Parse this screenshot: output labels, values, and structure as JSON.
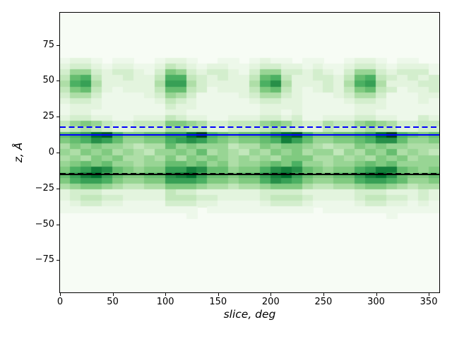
{
  "figure": {
    "background": "#ffffff",
    "plot_background": "#f7fcf5",
    "frame_color": "#000000"
  },
  "chart_data": {
    "type": "heatmap",
    "title": "",
    "xlabel": "slice, deg",
    "ylabel": "z, Å",
    "x_range": [
      0,
      360
    ],
    "z_range": [
      -97.5,
      97.5
    ],
    "x_tick_values": [
      0,
      50,
      100,
      150,
      200,
      250,
      300,
      350
    ],
    "x_tick_labels": [
      "0",
      "50",
      "100",
      "150",
      "200",
      "250",
      "300",
      "350"
    ],
    "y_tick_values": [
      75,
      50,
      25,
      0,
      -25,
      -50,
      -75
    ],
    "y_tick_labels": [
      "75",
      "50",
      "25",
      "0",
      "−25",
      "−50",
      "−75"
    ],
    "grid": false,
    "legend": "none",
    "colormap": "Greens",
    "colormap_stops": [
      [
        0.0,
        "#f7fcf5"
      ],
      [
        0.125,
        "#e5f5e0"
      ],
      [
        0.25,
        "#c7e9c0"
      ],
      [
        0.375,
        "#a1d99b"
      ],
      [
        0.5,
        "#74c476"
      ],
      [
        0.625,
        "#41ab5d"
      ],
      [
        0.75,
        "#238b45"
      ],
      [
        0.875,
        "#006d2c"
      ],
      [
        1.0,
        "#00441b"
      ]
    ],
    "n_cols": 36,
    "n_rows": 49,
    "value_encoding": "rows listed top (z=+97.5) to bottom (z=-97.5); each char is one 10-deg x-bin; hex digit 0-15 = relative density, mapped linearly onto the Greens colormap",
    "values_hex": [
      "000000000000000000000000000000000000",
      "000000000000000000000000000000000000",
      "000000000000000000000000000000000000",
      "000000000000000000000000000000000000",
      "000000000000000000000000000000000000",
      "000000000000000000000000000000000000",
      "000000000000000000000000000000000000",
      "000000000000000000000000000000000000",
      "122101100122100110121101100122101100",
      "233212211243212211233221211233212221",
      "366323321376323321366332321366323331",
      "489422322499432322489422332489432323",
      "59a5222225aa53222259b52223259a522233",
      "478421222488431222478421232478431223",
      "355311112365311112355321112355311122",
      "233211111243211111233221111233211121",
      "122211111132211111122221111122211111",
      "122111111122111111122121111122111111",
      "233221122243221122233231122233221132",
      "467643344477653344467643354467653344",
      "345432233355442233345432243345442233",
      "89ade97788aadf987889bde977889adf9878",
      "789ba866779aba8767789ca8667789bb8667",
      "576766545586766645576776545576766555",
      "657675654667685654657675664657685654",
      "565767556575767656565777556565767566",
      "678786656688786756678796656678786666",
      "79acb87677aacb886779bcb876779acc8767",
      "8acda87788bcda88788acda87788acdb8778",
      "79aa976677aaa9776779ba9766779aa98667",
      "567765445577765545567775445567765455",
      "233322222243322222233332222233322232",
      "234433222244433222234443222234433232",
      "123322111133322111123332111123322121",
      "111111111111101111111111011111111111",
      "000000000000100000000000000000010000",
      "000000000000000000000000000000000000",
      "000000000000000000000000000000000000",
      "000000000000000000000000000000000000",
      "000000000000000000000000000000000000",
      "000000000000000000000000000000000000",
      "000000000000000000000000000000000000",
      "000000000000000000000000000000000000",
      "000000000000000000000000000000000000",
      "000000000000000000000000000000000000",
      "000000000000000000000000000000000000",
      "000000000000000000000000000000000000",
      "000000000000000000000000000000000000",
      "000000000000000000000000000000000000"
    ],
    "lines": [
      {
        "name": "blue-solid-hline",
        "z": 12.2,
        "color": "#0000ff",
        "style": "solid"
      },
      {
        "name": "blue-dashed-hline",
        "z": 17.5,
        "color": "#0000ff",
        "style": "dashed"
      },
      {
        "name": "black-solid-hline",
        "z": -15.3,
        "color": "#000000",
        "style": "solid"
      },
      {
        "name": "black-dashed-hline",
        "z": -14.7,
        "color": "#000000",
        "style": "dashed"
      }
    ]
  }
}
